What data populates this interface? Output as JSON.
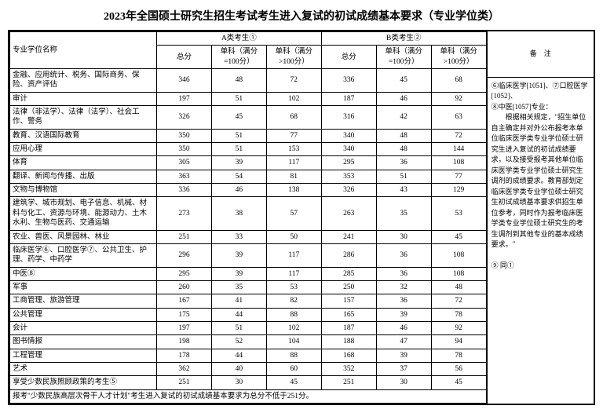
{
  "title": "2023年全国硕士研究生招生考试考生进入复试的初试成绩基本要求（专业学位类）",
  "headers": {
    "name": "专业学位名称",
    "catA": "A类考生①",
    "catB": "B类考生②",
    "total": "总分",
    "sub100": "单科（满分=100分）",
    "subOver": "单科（满分>100分）",
    "notes": "备　注"
  },
  "rows": [
    {
      "name": "金融、应用统计、税务、国际商务、保险、资产评估",
      "a": [
        346,
        48,
        72
      ],
      "b": [
        336,
        45,
        68
      ]
    },
    {
      "name": "审计",
      "a": [
        197,
        51,
        102
      ],
      "b": [
        187,
        46,
        92
      ]
    },
    {
      "name": "法律（非法学）、法律（法学）、社会工作、警务",
      "a": [
        326,
        45,
        68
      ],
      "b": [
        316,
        42,
        63
      ]
    },
    {
      "name": "教育、汉语国际教育",
      "a": [
        350,
        51,
        77
      ],
      "b": [
        340,
        48,
        72
      ]
    },
    {
      "name": "应用心理",
      "a": [
        350,
        51,
        153
      ],
      "b": [
        340,
        48,
        144
      ]
    },
    {
      "name": "体育",
      "a": [
        305,
        39,
        117
      ],
      "b": [
        295,
        36,
        108
      ]
    },
    {
      "name": "翻译、新闻与传播、出版",
      "a": [
        363,
        54,
        81
      ],
      "b": [
        353,
        51,
        77
      ]
    },
    {
      "name": "文物与博物馆",
      "a": [
        336,
        46,
        138
      ],
      "b": [
        326,
        43,
        129
      ]
    },
    {
      "name": "建筑学、城市规划、电子信息、机械、材料与化工、资源与环境、能源动力、土木水利、生物与医药、交通运输",
      "a": [
        273,
        38,
        57
      ],
      "b": [
        263,
        35,
        53
      ]
    },
    {
      "name": "农业、兽医、风景园林、林业",
      "a": [
        251,
        33,
        50
      ],
      "b": [
        241,
        30,
        45
      ]
    },
    {
      "name": "临床医学⑥、口腔医学⑦、公共卫生、护理、药学、中药学",
      "a": [
        296,
        39,
        117
      ],
      "b": [
        286,
        36,
        108
      ]
    },
    {
      "name": "中医⑧",
      "a": [
        295,
        39,
        117
      ],
      "b": [
        285,
        36,
        108
      ]
    },
    {
      "name": "军事",
      "a": [
        260,
        35,
        53
      ],
      "b": [
        250,
        32,
        48
      ]
    },
    {
      "name": "工商管理、旅游管理",
      "a": [
        167,
        41,
        82
      ],
      "b": [
        157,
        36,
        72
      ]
    },
    {
      "name": "公共管理",
      "a": [
        175,
        44,
        88
      ],
      "b": [
        165,
        39,
        78
      ]
    },
    {
      "name": "会计",
      "a": [
        197,
        51,
        102
      ],
      "b": [
        187,
        46,
        92
      ]
    },
    {
      "name": "图书情报",
      "a": [
        198,
        52,
        104
      ],
      "b": [
        188,
        47,
        94
      ]
    },
    {
      "name": "工程管理",
      "a": [
        178,
        44,
        88
      ],
      "b": [
        168,
        39,
        78
      ]
    },
    {
      "name": "艺术",
      "a": [
        362,
        40,
        60
      ],
      "b": [
        352,
        37,
        56
      ]
    },
    {
      "name": "享受少数民族照顾政策的考生⑤",
      "a": [
        251,
        30,
        45
      ],
      "b": [
        251,
        30,
        45
      ]
    }
  ],
  "footer": "报考\"少数民族高层次骨干人才计划\"考生进入复试的初试成绩基本要求为总分不低于251分。",
  "notes": {
    "n1": "⑥临床医学[1051]、⑦口腔医学[1052]、",
    "n2": "⑧中医[1057]专业：",
    "n3": "　　根据相关规定，\"招生单位自主确定并对外公布报考本单位临床医学类专业学位硕士研究生进入复试的初试成绩要求，以及接受报考其他单位临床医学类专业学位硕士研究生调剂的成绩要求。教育部划定临床医学类专业学位硕士研究生初试成绩基本要求供招生单位参考，同时作为报考临床医学类专业学位硕士研究生的考生调剂到其他专业的基本成绩要求。\"",
    "n4": "⑨ 同①"
  }
}
